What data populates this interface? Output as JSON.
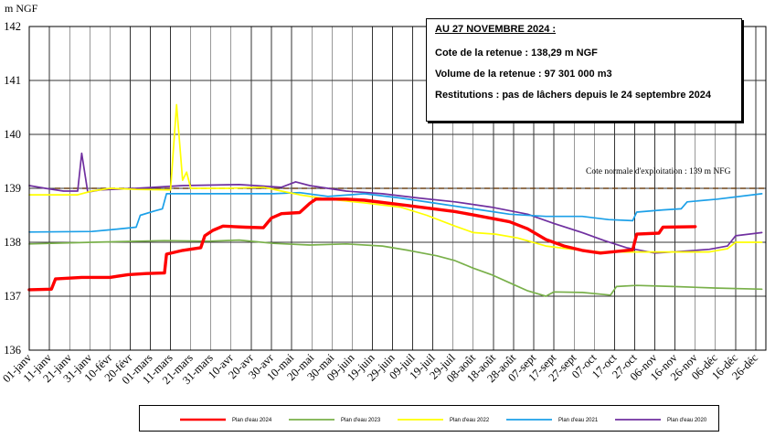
{
  "chart_data": {
    "type": "line",
    "ylabel": "m NGF",
    "ylim": [
      136,
      142
    ],
    "yticks": [
      136,
      137,
      138,
      139,
      140,
      141,
      142
    ],
    "xlim": [
      "01-janv",
      "31-déc"
    ],
    "xticks": [
      "01-janv",
      "11-janv",
      "21-janv",
      "31-janv",
      "10-févr",
      "20-févr",
      "01-mars",
      "11-mars",
      "21-mars",
      "31-mars",
      "10-avr",
      "20-avr",
      "30-avr",
      "10-mai",
      "20-mai",
      "30-mai",
      "09-juin",
      "19-juin",
      "29-juin",
      "09-juil",
      "19-juil",
      "29-juil",
      "08-août",
      "18-août",
      "28-août",
      "07-sept",
      "17-sept",
      "27-sept",
      "07-oct",
      "17-oct",
      "27-oct",
      "06-nov",
      "16-nov",
      "26-nov",
      "06-déc",
      "16-déc",
      "26-déc"
    ],
    "grid": true,
    "legend_position": "bottom",
    "reference_line": {
      "value": 139,
      "label": "Cote normale d'exploitation : 139 m NFG",
      "color": "#6e4316",
      "style": "dashed"
    },
    "series": [
      {
        "name": "Plan d'eau 2024",
        "color": "#ff0000",
        "points": [
          [
            "01-janv",
            137.12
          ],
          [
            "12-janv",
            137.13
          ],
          [
            "14-janv",
            137.32
          ],
          [
            "27-janv",
            137.35
          ],
          [
            "10-févr",
            137.35
          ],
          [
            "19-févr",
            137.4
          ],
          [
            "28-févr",
            137.42
          ],
          [
            "08-mars",
            137.43
          ],
          [
            "09-mars",
            137.78
          ],
          [
            "17-mars",
            137.85
          ],
          [
            "26-mars",
            137.9
          ],
          [
            "28-mars",
            138.12
          ],
          [
            "01-avr",
            138.22
          ],
          [
            "06-avr",
            138.3
          ],
          [
            "17-avr",
            138.28
          ],
          [
            "26-avr",
            138.27
          ],
          [
            "30-avr",
            138.45
          ],
          [
            "05-mai",
            138.53
          ],
          [
            "14-mai",
            138.55
          ],
          [
            "19-mai",
            138.72
          ],
          [
            "22-mai",
            138.8
          ],
          [
            "06-juin",
            138.8
          ],
          [
            "15-juin",
            138.78
          ],
          [
            "07-juil",
            138.68
          ],
          [
            "30-juil",
            138.57
          ],
          [
            "12-août",
            138.48
          ],
          [
            "26-août",
            138.38
          ],
          [
            "04-sept",
            138.25
          ],
          [
            "13-sept",
            138.05
          ],
          [
            "22-sept",
            137.93
          ],
          [
            "01-oct",
            137.85
          ],
          [
            "10-oct",
            137.8
          ],
          [
            "23-oct",
            137.85
          ],
          [
            "26-oct",
            137.86
          ],
          [
            "28-oct",
            138.15
          ],
          [
            "08-nov",
            138.17
          ],
          [
            "10-nov",
            138.28
          ],
          [
            "26-nov",
            138.29
          ]
        ]
      },
      {
        "name": "Plan d'eau 2023",
        "color": "#79b04a",
        "points": [
          [
            "01-janv",
            137.97
          ],
          [
            "01-févr",
            138.0
          ],
          [
            "08-mars",
            138.03
          ],
          [
            "30-mars",
            138.02
          ],
          [
            "14-avr",
            138.04
          ],
          [
            "01-mai",
            137.98
          ],
          [
            "19-mai",
            137.95
          ],
          [
            "06-juin",
            137.97
          ],
          [
            "24-juin",
            137.93
          ],
          [
            "07-juil",
            137.85
          ],
          [
            "21-juil",
            137.75
          ],
          [
            "30-juil",
            137.66
          ],
          [
            "08-août",
            137.52
          ],
          [
            "17-août",
            137.4
          ],
          [
            "26-août",
            137.25
          ],
          [
            "04-sept",
            137.1
          ],
          [
            "13-sept",
            137.0
          ],
          [
            "17-sept",
            137.08
          ],
          [
            "01-oct",
            137.07
          ],
          [
            "15-oct",
            137.02
          ],
          [
            "18-oct",
            137.18
          ],
          [
            "28-oct",
            137.2
          ],
          [
            "15-nov",
            137.18
          ],
          [
            "07-déc",
            137.15
          ],
          [
            "29-déc",
            137.13
          ]
        ]
      },
      {
        "name": "Plan d'eau 2022",
        "color": "#ffff00",
        "points": [
          [
            "01-janv",
            138.88
          ],
          [
            "25-janv",
            138.88
          ],
          [
            "01-févr",
            138.95
          ],
          [
            "10-févr",
            139.0
          ],
          [
            "23-févr",
            138.98
          ],
          [
            "11-mars",
            138.97
          ],
          [
            "14-mars",
            140.55
          ],
          [
            "17-mars",
            139.15
          ],
          [
            "19-mars",
            139.3
          ],
          [
            "21-mars",
            139.0
          ],
          [
            "08-avr",
            139.0
          ],
          [
            "26-avr",
            139.02
          ],
          [
            "05-mai",
            138.95
          ],
          [
            "14-mai",
            138.88
          ],
          [
            "28-mai",
            138.8
          ],
          [
            "15-juin",
            138.73
          ],
          [
            "03-juil",
            138.65
          ],
          [
            "16-juil",
            138.5
          ],
          [
            "30-juil",
            138.3
          ],
          [
            "08-août",
            138.18
          ],
          [
            "19-août",
            138.15
          ],
          [
            "30-août",
            138.08
          ],
          [
            "13-sept",
            137.93
          ],
          [
            "24-sept",
            137.88
          ],
          [
            "10-oct",
            137.82
          ],
          [
            "06-nov",
            137.82
          ],
          [
            "03-déc",
            137.82
          ],
          [
            "12-déc",
            137.88
          ],
          [
            "16-déc",
            138.0
          ],
          [
            "29-déc",
            138.0
          ]
        ]
      },
      {
        "name": "Plan d'eau 2021",
        "color": "#1ca0e8",
        "points": [
          [
            "01-janv",
            138.19
          ],
          [
            "01-févr",
            138.2
          ],
          [
            "10-févr",
            138.23
          ],
          [
            "23-févr",
            138.28
          ],
          [
            "25-févr",
            138.5
          ],
          [
            "03-mars",
            138.58
          ],
          [
            "07-mars",
            138.62
          ],
          [
            "09-mars",
            138.9
          ],
          [
            "17-avr",
            138.9
          ],
          [
            "01-mai",
            138.9
          ],
          [
            "14-mai",
            138.92
          ],
          [
            "28-mai",
            138.85
          ],
          [
            "15-juin",
            138.9
          ],
          [
            "03-juil",
            138.82
          ],
          [
            "21-juil",
            138.72
          ],
          [
            "08-août",
            138.62
          ],
          [
            "26-août",
            138.52
          ],
          [
            "13-sept",
            138.48
          ],
          [
            "01-oct",
            138.48
          ],
          [
            "14-oct",
            138.42
          ],
          [
            "26-oct",
            138.4
          ],
          [
            "28-oct",
            138.56
          ],
          [
            "10-nov",
            138.6
          ],
          [
            "19-nov",
            138.62
          ],
          [
            "22-nov",
            138.75
          ],
          [
            "07-déc",
            138.8
          ],
          [
            "29-déc",
            138.9
          ]
        ]
      },
      {
        "name": "Plan d'eau 2020",
        "color": "#7030a0",
        "points": [
          [
            "01-janv",
            139.05
          ],
          [
            "09-janv",
            139.0
          ],
          [
            "18-janv",
            138.95
          ],
          [
            "25-janv",
            138.95
          ],
          [
            "27-janv",
            139.65
          ],
          [
            "30-janv",
            138.93
          ],
          [
            "05-févr",
            138.97
          ],
          [
            "23-févr",
            139.0
          ],
          [
            "17-mars",
            139.05
          ],
          [
            "14-avr",
            139.07
          ],
          [
            "05-mai",
            139.02
          ],
          [
            "12-mai",
            139.12
          ],
          [
            "19-mai",
            139.05
          ],
          [
            "06-juin",
            138.95
          ],
          [
            "24-juin",
            138.9
          ],
          [
            "12-juil",
            138.82
          ],
          [
            "30-juil",
            138.75
          ],
          [
            "17-août",
            138.65
          ],
          [
            "04-sept",
            138.52
          ],
          [
            "17-sept",
            138.35
          ],
          [
            "01-oct",
            138.18
          ],
          [
            "12-oct",
            138.03
          ],
          [
            "23-oct",
            137.9
          ],
          [
            "06-nov",
            137.8
          ],
          [
            "19-nov",
            137.83
          ],
          [
            "03-déc",
            137.87
          ],
          [
            "12-déc",
            137.93
          ],
          [
            "16-déc",
            138.12
          ],
          [
            "29-déc",
            138.18
          ]
        ]
      }
    ]
  },
  "info_box": {
    "title": "AU 27 NOVEMBRE 2024 :",
    "lines": [
      "Cote de la retenue : 138,29 m NGF",
      "Volume de la retenue : 97 301 000 m3",
      "Restitutions : pas de lâchers depuis le 24 septembre 2024"
    ]
  }
}
